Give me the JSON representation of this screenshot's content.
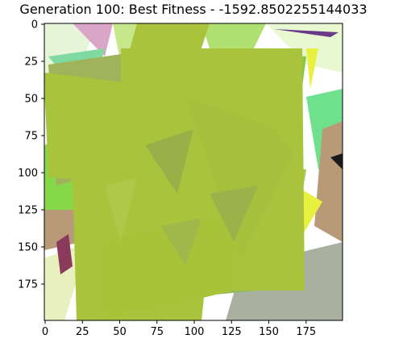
{
  "title": "Generation 100: Best Fitness - -1592.8502255144033",
  "axes": {
    "x_ticks": [
      "0",
      "25",
      "50",
      "75",
      "100",
      "125",
      "150",
      "175"
    ],
    "y_ticks": [
      "0",
      "25",
      "50",
      "75",
      "100",
      "125",
      "150",
      "175"
    ],
    "x_range": [
      0,
      200
    ],
    "y_range": [
      0,
      200
    ],
    "y_inverted": true,
    "grid": false
  },
  "colors": {
    "dominant": "#a9c43c",
    "bright_green": "#86d84a",
    "olive": "#9fb45a",
    "tan": "#b89a78",
    "mint": "#7fd9a0",
    "pink": "#d9a6c8",
    "yellow": "#e8f040",
    "dark": "#1a1a1a"
  }
}
